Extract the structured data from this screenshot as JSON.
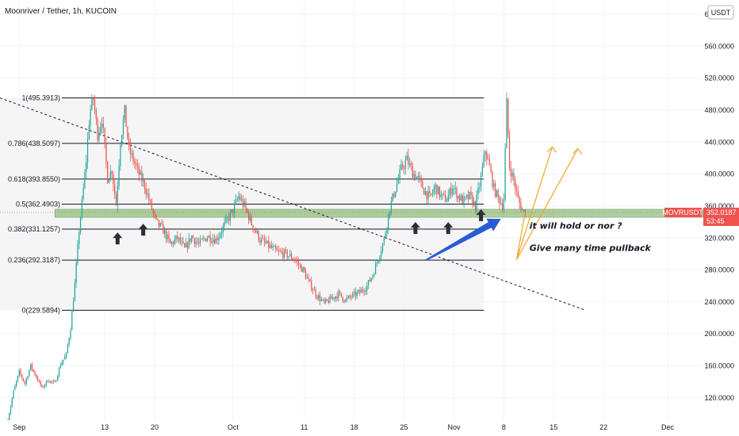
{
  "header": {
    "title": "Moonriver / Tether, 1h, KUCOIN",
    "currency": "USDT"
  },
  "chart_data": {
    "type": "candlestick",
    "symbol": "MOVRUSDT",
    "y_ticks": [
      120,
      160,
      200,
      240,
      280,
      320,
      360,
      400,
      440,
      480,
      520,
      560,
      600
    ],
    "y_tick_labels": [
      "120.0000",
      "160.0000",
      "200.0000",
      "240.0000",
      "280.0000",
      "320.0000",
      "360.0000",
      "400.0000",
      "440.0000",
      "480.0000",
      "520.0000",
      "560.0000",
      "600.0000"
    ],
    "ylim": [
      92,
      618
    ],
    "x_ticks": [
      "Sep",
      "13",
      "20",
      "Oct",
      "11",
      "18",
      "25",
      "Nov",
      "8",
      "15",
      "22",
      "Dec"
    ],
    "x_tick_days": [
      0,
      12,
      19,
      30,
      40,
      47,
      54,
      61,
      68,
      75,
      82,
      91
    ],
    "xlim": [
      -2.7,
      96
    ],
    "fib_levels": [
      {
        "label": "1(495.3913)",
        "value": 495.3913
      },
      {
        "label": "0.786(438.5097)",
        "value": 438.5097
      },
      {
        "label": "0.618(393.8550)",
        "value": 393.855
      },
      {
        "label": "0.5(362.4903)",
        "value": 362.4903
      },
      {
        "label": "0.382(331.1257)",
        "value": 331.1257
      },
      {
        "label": "0.236(292.3187)",
        "value": 292.3187
      },
      {
        "label": "0(229.5894)",
        "value": 229.5894
      }
    ],
    "fib_range_days": [
      -2.7,
      65.2
    ],
    "support_zone": [
      346,
      356
    ],
    "current_price": {
      "label": "MOVRUSDT",
      "value": "352.0187",
      "countdown": "53:45",
      "numeric": 352.0187
    },
    "price_path": [
      [
        -1.6,
        92
      ],
      [
        -0.8,
        128
      ],
      [
        0.0,
        152
      ],
      [
        0.8,
        138
      ],
      [
        1.6,
        160
      ],
      [
        2.4,
        146
      ],
      [
        3.2,
        132
      ],
      [
        4.0,
        142
      ],
      [
        5.0,
        138
      ],
      [
        5.8,
        162
      ],
      [
        6.6,
        174
      ],
      [
        7.2,
        208
      ],
      [
        7.8,
        262
      ],
      [
        8.4,
        330
      ],
      [
        8.9,
        372
      ],
      [
        9.4,
        418
      ],
      [
        9.9,
        478
      ],
      [
        10.4,
        494
      ],
      [
        11.0,
        450
      ],
      [
        11.6,
        470
      ],
      [
        12.4,
        395
      ],
      [
        13.0,
        405
      ],
      [
        13.6,
        362
      ],
      [
        14.2,
        442
      ],
      [
        14.8,
        478
      ],
      [
        15.4,
        430
      ],
      [
        16.0,
        418
      ],
      [
        16.8,
        400
      ],
      [
        17.6,
        386
      ],
      [
        18.4,
        362
      ],
      [
        19.2,
        340
      ],
      [
        20.2,
        330
      ],
      [
        21.2,
        312
      ],
      [
        22.2,
        320
      ],
      [
        23.2,
        306
      ],
      [
        24.2,
        322
      ],
      [
        25.2,
        312
      ],
      [
        26.4,
        322
      ],
      [
        27.6,
        318
      ],
      [
        28.8,
        336
      ],
      [
        30.0,
        355
      ],
      [
        30.8,
        372
      ],
      [
        31.6,
        360
      ],
      [
        32.6,
        338
      ],
      [
        33.8,
        318
      ],
      [
        35.0,
        310
      ],
      [
        36.2,
        302
      ],
      [
        37.4,
        300
      ],
      [
        38.6,
        294
      ],
      [
        39.8,
        280
      ],
      [
        40.8,
        262
      ],
      [
        41.8,
        248
      ],
      [
        42.8,
        238
      ],
      [
        43.8,
        244
      ],
      [
        44.8,
        250
      ],
      [
        45.8,
        242
      ],
      [
        46.8,
        248
      ],
      [
        47.8,
        252
      ],
      [
        48.8,
        260
      ],
      [
        49.6,
        274
      ],
      [
        50.4,
        296
      ],
      [
        51.2,
        318
      ],
      [
        52.0,
        358
      ],
      [
        52.8,
        382
      ],
      [
        53.6,
        406
      ],
      [
        54.4,
        418
      ],
      [
        55.2,
        402
      ],
      [
        56.0,
        394
      ],
      [
        56.8,
        380
      ],
      [
        57.6,
        370
      ],
      [
        58.4,
        384
      ],
      [
        59.2,
        372
      ],
      [
        60.0,
        368
      ],
      [
        60.8,
        385
      ],
      [
        61.6,
        372
      ],
      [
        62.4,
        366
      ],
      [
        63.2,
        372
      ],
      [
        64.0,
        360
      ],
      [
        64.8,
        395
      ],
      [
        65.4,
        430
      ],
      [
        66.0,
        408
      ],
      [
        66.6,
        382
      ],
      [
        67.2,
        370
      ],
      [
        67.8,
        362
      ],
      [
        68.0,
        370
      ],
      [
        68.4,
        488
      ],
      [
        68.8,
        410
      ],
      [
        69.4,
        392
      ],
      [
        70.0,
        368
      ],
      [
        70.6,
        355
      ],
      [
        71.0,
        352
      ]
    ],
    "annotations": [
      {
        "text": "it will hold or nor ?",
        "day": 71.6,
        "value": 335.5
      },
      {
        "text": "Give many time pullback",
        "day": 71.6,
        "value": 308.0
      }
    ],
    "arrows_up": [
      {
        "day": 13.8,
        "value": 319
      },
      {
        "day": 17.4,
        "value": 330
      },
      {
        "day": 55.6,
        "value": 332
      },
      {
        "day": 60.2,
        "value": 332
      },
      {
        "day": 64.8,
        "value": 348
      }
    ],
    "trendline": {
      "from": [
        -2.7,
        495.39
      ],
      "to": [
        79.3,
        230.1
      ]
    },
    "projection": {
      "pivot": [
        69.8,
        293
      ],
      "start": [
        71.0,
        352
      ],
      "peaks": [
        [
          74.8,
          434
        ],
        [
          78.4,
          432
        ]
      ]
    },
    "blue_arrow": {
      "from": [
        57.0,
        292
      ],
      "to": [
        67.6,
        344
      ]
    },
    "colors": {
      "up": "#26a69a",
      "down": "#ef5350",
      "fib_line": "#131722",
      "zone": "#8fbf7f",
      "projection": "#f5a623",
      "blue_arrow": "#2a5bd7",
      "price_tag": "#ef5350",
      "shade": "#f5f5f5"
    }
  }
}
